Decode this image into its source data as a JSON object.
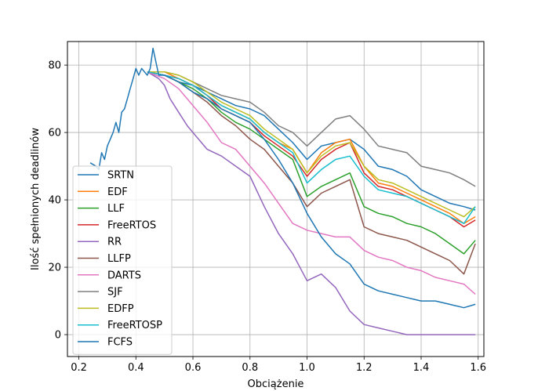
{
  "chart_data": {
    "type": "line",
    "title": "",
    "xlabel": "Obciążenie",
    "ylabel": "Ilość spełnionych deadlinów",
    "xlim": [
      0.16,
      1.62
    ],
    "ylim": [
      -6.5,
      87
    ],
    "xticks": [
      0.2,
      0.4,
      0.6,
      0.8,
      1.0,
      1.2,
      1.4,
      1.6
    ],
    "xtick_labels": [
      "0.2",
      "0.4",
      "0.6",
      "0.8",
      "1.0",
      "1.2",
      "1.4",
      "1.6"
    ],
    "yticks": [
      0,
      20,
      40,
      60,
      80
    ],
    "ytick_labels": [
      "0",
      "20",
      "40",
      "60",
      "80"
    ],
    "grid": true,
    "legend_position": "lower-left",
    "series": [
      {
        "name": "SRTN",
        "color": "#1f77b4",
        "points": [
          [
            0.44,
            78
          ],
          [
            0.5,
            77
          ],
          [
            0.55,
            75
          ],
          [
            0.6,
            74
          ],
          [
            0.65,
            72
          ],
          [
            0.7,
            70
          ],
          [
            0.75,
            68
          ],
          [
            0.8,
            67
          ],
          [
            0.85,
            65
          ],
          [
            0.9,
            61
          ],
          [
            0.95,
            57
          ],
          [
            1.0,
            52
          ],
          [
            1.05,
            56
          ],
          [
            1.1,
            57
          ],
          [
            1.15,
            58
          ],
          [
            1.2,
            55
          ],
          [
            1.25,
            50
          ],
          [
            1.3,
            49
          ],
          [
            1.35,
            47
          ],
          [
            1.4,
            43
          ],
          [
            1.45,
            41
          ],
          [
            1.5,
            39
          ],
          [
            1.55,
            38
          ],
          [
            1.59,
            37
          ]
        ]
      },
      {
        "name": "EDF",
        "color": "#ff7f0e",
        "points": [
          [
            0.44,
            78
          ],
          [
            0.5,
            78
          ],
          [
            0.55,
            76
          ],
          [
            0.6,
            74
          ],
          [
            0.65,
            71
          ],
          [
            0.7,
            68
          ],
          [
            0.75,
            66
          ],
          [
            0.8,
            64
          ],
          [
            0.85,
            60
          ],
          [
            0.9,
            57
          ],
          [
            0.95,
            55
          ],
          [
            1.0,
            48
          ],
          [
            1.05,
            54
          ],
          [
            1.1,
            57
          ],
          [
            1.15,
            58
          ],
          [
            1.2,
            50
          ],
          [
            1.25,
            45
          ],
          [
            1.3,
            44
          ],
          [
            1.35,
            42
          ],
          [
            1.4,
            40
          ],
          [
            1.45,
            38
          ],
          [
            1.5,
            36
          ],
          [
            1.55,
            33
          ],
          [
            1.59,
            35
          ]
        ]
      },
      {
        "name": "LLF",
        "color": "#2ca02c",
        "points": [
          [
            0.44,
            78
          ],
          [
            0.5,
            77
          ],
          [
            0.55,
            75
          ],
          [
            0.6,
            73
          ],
          [
            0.65,
            70
          ],
          [
            0.7,
            66
          ],
          [
            0.75,
            63
          ],
          [
            0.8,
            61
          ],
          [
            0.85,
            58
          ],
          [
            0.9,
            55
          ],
          [
            0.95,
            52
          ],
          [
            1.0,
            41
          ],
          [
            1.05,
            44
          ],
          [
            1.1,
            46
          ],
          [
            1.15,
            48
          ],
          [
            1.2,
            38
          ],
          [
            1.25,
            36
          ],
          [
            1.3,
            35
          ],
          [
            1.35,
            33
          ],
          [
            1.4,
            32
          ],
          [
            1.45,
            30
          ],
          [
            1.5,
            27
          ],
          [
            1.55,
            24
          ],
          [
            1.59,
            28
          ]
        ]
      },
      {
        "name": "FreeRTOS",
        "color": "#d62728",
        "points": [
          [
            0.44,
            78
          ],
          [
            0.5,
            77
          ],
          [
            0.55,
            76
          ],
          [
            0.6,
            74
          ],
          [
            0.65,
            71
          ],
          [
            0.7,
            67
          ],
          [
            0.75,
            65
          ],
          [
            0.8,
            63
          ],
          [
            0.85,
            59
          ],
          [
            0.9,
            56
          ],
          [
            0.95,
            53
          ],
          [
            1.0,
            47
          ],
          [
            1.05,
            52
          ],
          [
            1.1,
            55
          ],
          [
            1.15,
            57
          ],
          [
            1.2,
            48
          ],
          [
            1.25,
            44
          ],
          [
            1.3,
            43
          ],
          [
            1.35,
            41
          ],
          [
            1.4,
            39
          ],
          [
            1.45,
            37
          ],
          [
            1.5,
            35
          ],
          [
            1.55,
            32
          ],
          [
            1.59,
            34
          ]
        ]
      },
      {
        "name": "RR",
        "color": "#9467bd",
        "points": [
          [
            0.44,
            78
          ],
          [
            0.48,
            76
          ],
          [
            0.5,
            74
          ],
          [
            0.52,
            70
          ],
          [
            0.55,
            66
          ],
          [
            0.58,
            62
          ],
          [
            0.6,
            60
          ],
          [
            0.65,
            55
          ],
          [
            0.7,
            53
          ],
          [
            0.75,
            50
          ],
          [
            0.8,
            47
          ],
          [
            0.85,
            38
          ],
          [
            0.9,
            30
          ],
          [
            0.95,
            24
          ],
          [
            1.0,
            16
          ],
          [
            1.05,
            18
          ],
          [
            1.1,
            14
          ],
          [
            1.15,
            7
          ],
          [
            1.2,
            3
          ],
          [
            1.25,
            2
          ],
          [
            1.3,
            1
          ],
          [
            1.35,
            0
          ],
          [
            1.4,
            0
          ],
          [
            1.45,
            0
          ],
          [
            1.5,
            0
          ],
          [
            1.55,
            0
          ],
          [
            1.59,
            0
          ]
        ]
      },
      {
        "name": "LLFP",
        "color": "#8c564b",
        "points": [
          [
            0.44,
            78
          ],
          [
            0.5,
            77
          ],
          [
            0.55,
            75
          ],
          [
            0.6,
            72
          ],
          [
            0.65,
            69
          ],
          [
            0.7,
            65
          ],
          [
            0.75,
            62
          ],
          [
            0.8,
            58
          ],
          [
            0.85,
            55
          ],
          [
            0.9,
            50
          ],
          [
            0.95,
            45
          ],
          [
            1.0,
            38
          ],
          [
            1.05,
            42
          ],
          [
            1.1,
            44
          ],
          [
            1.15,
            46
          ],
          [
            1.2,
            32
          ],
          [
            1.25,
            30
          ],
          [
            1.3,
            29
          ],
          [
            1.35,
            28
          ],
          [
            1.4,
            26
          ],
          [
            1.45,
            24
          ],
          [
            1.5,
            22
          ],
          [
            1.55,
            18
          ],
          [
            1.59,
            27
          ]
        ]
      },
      {
        "name": "DARTS",
        "color": "#e377c2",
        "points": [
          [
            0.44,
            78
          ],
          [
            0.5,
            76
          ],
          [
            0.55,
            73
          ],
          [
            0.6,
            68
          ],
          [
            0.65,
            63
          ],
          [
            0.7,
            57
          ],
          [
            0.75,
            55
          ],
          [
            0.8,
            50
          ],
          [
            0.85,
            45
          ],
          [
            0.9,
            39
          ],
          [
            0.95,
            33
          ],
          [
            1.0,
            31
          ],
          [
            1.05,
            30
          ],
          [
            1.1,
            29
          ],
          [
            1.15,
            29
          ],
          [
            1.2,
            25
          ],
          [
            1.25,
            23
          ],
          [
            1.3,
            22
          ],
          [
            1.35,
            20
          ],
          [
            1.4,
            19
          ],
          [
            1.45,
            17
          ],
          [
            1.5,
            16
          ],
          [
            1.55,
            15
          ],
          [
            1.59,
            12
          ]
        ]
      },
      {
        "name": "SJF",
        "color": "#7f7f7f",
        "points": [
          [
            0.44,
            78
          ],
          [
            0.5,
            78
          ],
          [
            0.55,
            77
          ],
          [
            0.6,
            75
          ],
          [
            0.65,
            73
          ],
          [
            0.7,
            71
          ],
          [
            0.75,
            70
          ],
          [
            0.8,
            69
          ],
          [
            0.85,
            66
          ],
          [
            0.9,
            62
          ],
          [
            0.95,
            60
          ],
          [
            1.0,
            56
          ],
          [
            1.05,
            60
          ],
          [
            1.1,
            64
          ],
          [
            1.15,
            65
          ],
          [
            1.2,
            61
          ],
          [
            1.25,
            56
          ],
          [
            1.3,
            55
          ],
          [
            1.35,
            54
          ],
          [
            1.4,
            50
          ],
          [
            1.45,
            49
          ],
          [
            1.5,
            48
          ],
          [
            1.55,
            46
          ],
          [
            1.59,
            44
          ]
        ]
      },
      {
        "name": "EDFP",
        "color": "#bcbd22",
        "points": [
          [
            0.44,
            78
          ],
          [
            0.5,
            78
          ],
          [
            0.55,
            77
          ],
          [
            0.6,
            75
          ],
          [
            0.65,
            72
          ],
          [
            0.7,
            69
          ],
          [
            0.75,
            67
          ],
          [
            0.8,
            65
          ],
          [
            0.85,
            61
          ],
          [
            0.9,
            58
          ],
          [
            0.95,
            55
          ],
          [
            1.0,
            48
          ],
          [
            1.05,
            53
          ],
          [
            1.1,
            56
          ],
          [
            1.15,
            57
          ],
          [
            1.2,
            50
          ],
          [
            1.25,
            46
          ],
          [
            1.3,
            45
          ],
          [
            1.35,
            43
          ],
          [
            1.4,
            41
          ],
          [
            1.45,
            39
          ],
          [
            1.5,
            37
          ],
          [
            1.55,
            35
          ],
          [
            1.59,
            38
          ]
        ]
      },
      {
        "name": "FreeRTOSP",
        "color": "#17becf",
        "points": [
          [
            0.44,
            78
          ],
          [
            0.5,
            77
          ],
          [
            0.55,
            76
          ],
          [
            0.6,
            74
          ],
          [
            0.65,
            71
          ],
          [
            0.7,
            68
          ],
          [
            0.75,
            66
          ],
          [
            0.8,
            64
          ],
          [
            0.85,
            60
          ],
          [
            0.9,
            57
          ],
          [
            0.95,
            54
          ],
          [
            1.0,
            45
          ],
          [
            1.05,
            49
          ],
          [
            1.1,
            52
          ],
          [
            1.15,
            53
          ],
          [
            1.2,
            47
          ],
          [
            1.25,
            43
          ],
          [
            1.3,
            42
          ],
          [
            1.35,
            41
          ],
          [
            1.4,
            39
          ],
          [
            1.45,
            37
          ],
          [
            1.5,
            35
          ],
          [
            1.55,
            33
          ],
          [
            1.59,
            38
          ]
        ]
      },
      {
        "name": "FCFS",
        "color": "#1f77b4",
        "points": [
          [
            0.24,
            51
          ],
          [
            0.26,
            50
          ],
          [
            0.27,
            49
          ],
          [
            0.28,
            54
          ],
          [
            0.29,
            52
          ],
          [
            0.3,
            56
          ],
          [
            0.31,
            58
          ],
          [
            0.32,
            60
          ],
          [
            0.33,
            63
          ],
          [
            0.34,
            60
          ],
          [
            0.35,
            66
          ],
          [
            0.36,
            67
          ],
          [
            0.37,
            70
          ],
          [
            0.38,
            73
          ],
          [
            0.39,
            76
          ],
          [
            0.4,
            79
          ],
          [
            0.41,
            77
          ],
          [
            0.42,
            79
          ],
          [
            0.43,
            78
          ],
          [
            0.44,
            77
          ],
          [
            0.45,
            79
          ],
          [
            0.46,
            85
          ],
          [
            0.48,
            77
          ],
          [
            0.5,
            77
          ],
          [
            0.55,
            75
          ],
          [
            0.6,
            72
          ],
          [
            0.65,
            70
          ],
          [
            0.7,
            67
          ],
          [
            0.75,
            65
          ],
          [
            0.8,
            63
          ],
          [
            0.85,
            58
          ],
          [
            0.9,
            52
          ],
          [
            0.95,
            45
          ],
          [
            1.0,
            36
          ],
          [
            1.05,
            29
          ],
          [
            1.1,
            24
          ],
          [
            1.15,
            21
          ],
          [
            1.2,
            15
          ],
          [
            1.25,
            13
          ],
          [
            1.3,
            12
          ],
          [
            1.35,
            11
          ],
          [
            1.4,
            10
          ],
          [
            1.45,
            10
          ],
          [
            1.5,
            9
          ],
          [
            1.55,
            8
          ],
          [
            1.59,
            9
          ]
        ]
      }
    ]
  }
}
